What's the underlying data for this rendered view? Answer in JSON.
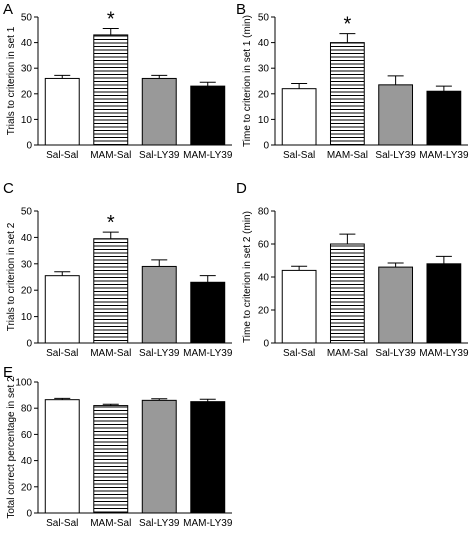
{
  "chart_data": [
    {
      "panel": "A",
      "type": "bar",
      "ylabel": "Trials to criterion in set 1",
      "ylim": [
        0,
        50
      ],
      "yticks": [
        0,
        10,
        20,
        30,
        40,
        50
      ],
      "categories": [
        "Sal-Sal",
        "MAM-Sal",
        "Sal-LY39",
        "MAM-LY39"
      ],
      "values": [
        26,
        43,
        26,
        23
      ],
      "errors": [
        1.2,
        2.5,
        1.2,
        1.5
      ],
      "significance": [
        "",
        "*",
        "",
        ""
      ]
    },
    {
      "panel": "B",
      "type": "bar",
      "ylabel": "Time to criterion in set 1  (min)",
      "ylim": [
        0,
        50
      ],
      "yticks": [
        0,
        10,
        20,
        30,
        40,
        50
      ],
      "categories": [
        "Sal-Sal",
        "MAM-Sal",
        "Sal-LY39",
        "MAM-LY39"
      ],
      "values": [
        22,
        40,
        23.5,
        21
      ],
      "errors": [
        2.0,
        3.5,
        3.5,
        2.0
      ],
      "significance": [
        "",
        "*",
        "",
        ""
      ]
    },
    {
      "panel": "C",
      "type": "bar",
      "ylabel": "Trials to criterion in set 2",
      "ylim": [
        0,
        50
      ],
      "yticks": [
        0,
        10,
        20,
        30,
        40,
        50
      ],
      "categories": [
        "Sal-Sal",
        "MAM-Sal",
        "Sal-LY39",
        "MAM-LY39"
      ],
      "values": [
        25.5,
        39.5,
        29,
        23
      ],
      "errors": [
        1.5,
        2.5,
        2.5,
        2.5
      ],
      "significance": [
        "",
        "*",
        "",
        ""
      ]
    },
    {
      "panel": "D",
      "type": "bar",
      "ylabel": "Time to criterion in set 2  (min)",
      "ylim": [
        0,
        80
      ],
      "yticks": [
        0,
        20,
        40,
        60,
        80
      ],
      "categories": [
        "Sal-Sal",
        "MAM-Sal",
        "Sal-LY39",
        "MAM-LY39"
      ],
      "values": [
        44,
        60,
        46,
        48
      ],
      "errors": [
        2.5,
        6.0,
        2.5,
        4.5
      ],
      "significance": [
        "",
        "",
        "",
        ""
      ]
    },
    {
      "panel": "E",
      "type": "bar",
      "ylabel": "Total correct percentage in set 2",
      "ylim": [
        0,
        100
      ],
      "yticks": [
        0,
        20,
        40,
        60,
        80,
        100
      ],
      "categories": [
        "Sal-Sal",
        "MAM-Sal",
        "Sal-LY39",
        "MAM-LY39"
      ],
      "values": [
        86.5,
        82,
        86,
        85
      ],
      "errors": [
        1.0,
        1.0,
        1.2,
        1.8
      ],
      "significance": [
        "",
        "",
        "",
        ""
      ]
    }
  ],
  "colors": {
    "bar_fills": [
      "#ffffff",
      "hatch",
      "#999999",
      "#000000"
    ],
    "stroke": "#000000"
  }
}
